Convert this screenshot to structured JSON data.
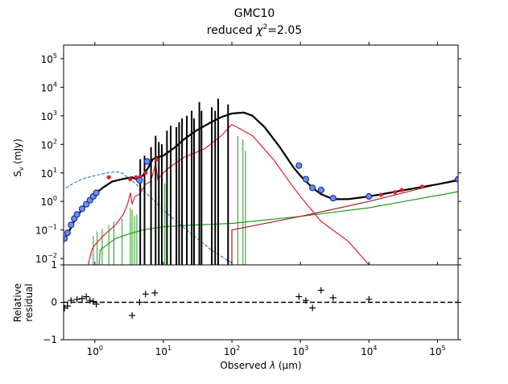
{
  "chart_data": [
    {
      "type": "line",
      "panel": "sed",
      "title_line1": "GMC10",
      "title_line2_prefix": "reduced ",
      "title_chi": "χ",
      "title_exp": "2",
      "title_line2_suffix": "=2.05",
      "ylabel_main": "S",
      "ylabel_sub": "ν",
      "ylabel_unit": " (mJy)",
      "xscale": "log",
      "yscale": "log",
      "xlim": [
        0.35,
        200000
      ],
      "ylim": [
        0.006,
        300000
      ],
      "y_ticks": [
        {
          "v": 0.01,
          "b": "10",
          "e": "−2"
        },
        {
          "v": 0.1,
          "b": "10",
          "e": "−1"
        },
        {
          "v": 1,
          "b": "10",
          "e": "0"
        },
        {
          "v": 10,
          "b": "10",
          "e": "1"
        },
        {
          "v": 100,
          "b": "10",
          "e": "2"
        },
        {
          "v": 1000,
          "b": "10",
          "e": "3"
        },
        {
          "v": 10000,
          "b": "10",
          "e": "4"
        },
        {
          "v": 100000,
          "b": "10",
          "e": "5"
        }
      ],
      "series": [
        {
          "name": "Attenuated stellar + nebular (green)",
          "color": "#1e9b1e",
          "style": "solid",
          "points": [
            [
              0.9,
              0.0
            ],
            [
              1.2,
              0.02
            ],
            [
              2,
              0.05
            ],
            [
              3,
              0.07
            ],
            [
              5,
              0.1
            ],
            [
              10,
              0.13
            ],
            [
              30,
              0.15
            ],
            [
              100,
              0.17
            ],
            [
              1000,
              0.3
            ],
            [
              10000,
              0.6
            ],
            [
              200000,
              2.2
            ]
          ],
          "lines": [
            [
              0.95,
              0.06
            ],
            [
              1.08,
              0.09
            ],
            [
              1.28,
              0.11
            ],
            [
              1.6,
              0.15
            ],
            [
              1.9,
              0.2
            ],
            [
              2.5,
              0.25
            ],
            [
              3.3,
              0.6
            ],
            [
              3.5,
              0.5
            ],
            [
              3.8,
              0.3
            ],
            [
              4.1,
              0.35
            ],
            [
              4.6,
              0.4
            ],
            [
              5.3,
              0.6
            ],
            [
              6.6,
              1.5
            ],
            [
              7.7,
              2.0
            ],
            [
              8.6,
              3.2
            ],
            [
              9.5,
              4.0
            ],
            [
              10.5,
              4.3
            ],
            [
              11.3,
              6.5
            ],
            [
              12.8,
              12
            ],
            [
              15.5,
              15
            ],
            [
              17.0,
              20
            ],
            [
              18.7,
              30
            ],
            [
              22,
              50
            ],
            [
              25.9,
              70
            ],
            [
              28,
              80
            ],
            [
              33.5,
              100
            ],
            [
              36,
              120
            ],
            [
              51,
              150
            ],
            [
              57,
              180
            ],
            [
              63,
              250
            ],
            [
              88,
              300
            ],
            [
              122,
              200
            ],
            [
              145,
              150
            ],
            [
              158,
              60
            ]
          ]
        },
        {
          "name": "Unattenuated stellar (blue dashed)",
          "color": "#2e7fd6",
          "style": "dashed",
          "points": [
            [
              0.38,
              3
            ],
            [
              0.5,
              4.5
            ],
            [
              0.7,
              6.5
            ],
            [
              1,
              8
            ],
            [
              1.5,
              10
            ],
            [
              2,
              11
            ],
            [
              2.5,
              10
            ],
            [
              3,
              7
            ],
            [
              4,
              4
            ],
            [
              5,
              2.5
            ],
            [
              7,
              1.2
            ],
            [
              10,
              0.5
            ],
            [
              20,
              0.12
            ],
            [
              50,
              0.02
            ],
            [
              100,
              0.007
            ]
          ]
        },
        {
          "name": "Dust emission (red)",
          "color": "#e01f2c",
          "style": "solid",
          "points": [
            [
              0.8,
              0.006
            ],
            [
              0.9,
              0.02
            ],
            [
              1.0,
              0.03
            ],
            [
              1.3,
              0.06
            ],
            [
              2,
              0.15
            ],
            [
              2.6,
              0.35
            ],
            [
              3.0,
              0.8
            ],
            [
              3.3,
              2
            ],
            [
              3.5,
              0.8
            ],
            [
              3.8,
              1.5
            ],
            [
              4.5,
              1.8
            ],
            [
              5.5,
              4
            ],
            [
              6.5,
              5
            ],
            [
              7.7,
              20
            ],
            [
              8.3,
              6
            ],
            [
              10,
              10
            ],
            [
              12,
              15
            ],
            [
              20,
              35
            ],
            [
              40,
              70
            ],
            [
              70,
              200
            ],
            [
              100,
              500
            ],
            [
              200,
              200
            ],
            [
              400,
              30
            ],
            [
              800,
              3
            ],
            [
              1000,
              1.5
            ],
            [
              2000,
              0.2
            ],
            [
              5000,
              0.04
            ],
            [
              10000,
              0.006
            ]
          ]
        },
        {
          "name": "Synchrotron (dark red)",
          "color": "#a61c1c",
          "style": "solid",
          "points": [
            [
              100,
              0.006
            ],
            [
              100,
              0.1
            ],
            [
              1000,
              0.3
            ],
            [
              10000,
              1
            ],
            [
              200000,
              6
            ]
          ]
        },
        {
          "name": "Total model (black)",
          "color": "#000000",
          "style": "solid",
          "points": [
            [
              0.35,
              0.04
            ],
            [
              0.4,
              0.07
            ],
            [
              0.5,
              0.2
            ],
            [
              0.6,
              0.4
            ],
            [
              0.8,
              1.0
            ],
            [
              1,
              1.8
            ],
            [
              1.3,
              3
            ],
            [
              1.8,
              5
            ],
            [
              2.5,
              6
            ],
            [
              3.5,
              7
            ],
            [
              4,
              6
            ],
            [
              5,
              8
            ],
            [
              6,
              15
            ],
            [
              7,
              30
            ],
            [
              8,
              35
            ],
            [
              10,
              40
            ],
            [
              15,
              80
            ],
            [
              20,
              150
            ],
            [
              30,
              300
            ],
            [
              50,
              600
            ],
            [
              70,
              900
            ],
            [
              100,
              1200
            ],
            [
              150,
              1300
            ],
            [
              200,
              1000
            ],
            [
              300,
              400
            ],
            [
              500,
              80
            ],
            [
              800,
              15
            ],
            [
              1000,
              8
            ],
            [
              1500,
              3
            ],
            [
              2000,
              1.8
            ],
            [
              3000,
              1.2
            ],
            [
              5000,
              1.2
            ],
            [
              10000,
              1.5
            ],
            [
              20000,
              2
            ],
            [
              50000,
              3
            ],
            [
              100000,
              4
            ],
            [
              200000,
              5.5
            ]
          ],
          "lines": [
            [
              4.6,
              30
            ],
            [
              5.3,
              40
            ],
            [
              6.6,
              80
            ],
            [
              7.7,
              200
            ],
            [
              8.6,
              120
            ],
            [
              9.5,
              100
            ],
            [
              11.3,
              300
            ],
            [
              12.8,
              450
            ],
            [
              15.5,
              400
            ],
            [
              17.0,
              600
            ],
            [
              18.7,
              800
            ],
            [
              22,
              1000
            ],
            [
              25.9,
              1500
            ],
            [
              28,
              800
            ],
            [
              33.5,
              3000
            ],
            [
              36,
              1500
            ],
            [
              51,
              2000
            ],
            [
              57,
              1500
            ],
            [
              63,
              4000
            ],
            [
              88,
              2500
            ]
          ]
        }
      ],
      "observed": [
        [
          0.36,
          0.05
        ],
        [
          0.4,
          0.08
        ],
        [
          0.45,
          0.15
        ],
        [
          0.5,
          0.25
        ],
        [
          0.55,
          0.35
        ],
        [
          0.65,
          0.55
        ],
        [
          0.75,
          0.8
        ],
        [
          0.85,
          1.1
        ],
        [
          0.95,
          1.5
        ],
        [
          1.05,
          2.0
        ],
        [
          4.5,
          5.5
        ],
        [
          5.8,
          25
        ],
        [
          950,
          18
        ],
        [
          1200,
          6
        ],
        [
          1500,
          3
        ],
        [
          2000,
          2.5
        ],
        [
          3000,
          1.3
        ],
        [
          10000,
          1.5
        ],
        [
          200000,
          6
        ]
      ],
      "model_points": [
        [
          1.6,
          7
        ],
        [
          3.3,
          6
        ],
        [
          4.0,
          7
        ],
        [
          4.6,
          7.5
        ],
        [
          5.5,
          10
        ],
        [
          8,
          30
        ],
        [
          1200,
          6
        ],
        [
          2100,
          2.5
        ],
        [
          15000,
          1.7
        ],
        [
          24000,
          2.1
        ],
        [
          30000,
          2.5
        ],
        [
          60000,
          3.3
        ]
      ]
    },
    {
      "type": "scatter",
      "panel": "residual",
      "ylabel_line1": "Relative",
      "ylabel_line2": "residual",
      "xlabel_prefix": "Observed ",
      "xlabel_var": "λ",
      "xlabel_suffix": " (μm)",
      "xscale": "log",
      "xlim": [
        0.35,
        200000
      ],
      "ylim": [
        -1,
        1
      ],
      "y_ticks": [
        {
          "v": -1,
          "label": "−1"
        },
        {
          "v": 0,
          "label": "0"
        },
        {
          "v": 1,
          "label": "1"
        }
      ],
      "x_ticks": [
        {
          "v": 1,
          "b": "10",
          "e": "0"
        },
        {
          "v": 10,
          "b": "10",
          "e": "1"
        },
        {
          "v": 100,
          "b": "10",
          "e": "2"
        },
        {
          "v": 1000,
          "b": "10",
          "e": "3"
        },
        {
          "v": 10000,
          "b": "10",
          "e": "4"
        },
        {
          "v": 100000,
          "b": "10",
          "e": "5"
        }
      ],
      "zero_line": 0,
      "points": [
        [
          0.36,
          -0.15
        ],
        [
          0.4,
          -0.1
        ],
        [
          0.45,
          0.05
        ],
        [
          0.55,
          0.08
        ],
        [
          0.65,
          0.1
        ],
        [
          0.75,
          0.15
        ],
        [
          0.85,
          0.05
        ],
        [
          0.95,
          0.02
        ],
        [
          1.05,
          -0.05
        ],
        [
          3.5,
          -0.35
        ],
        [
          4.5,
          0.0
        ],
        [
          5.5,
          0.22
        ],
        [
          7.5,
          0.25
        ],
        [
          950,
          0.15
        ],
        [
          1200,
          0.05
        ],
        [
          1500,
          -0.15
        ],
        [
          2000,
          0.32
        ],
        [
          3000,
          0.12
        ],
        [
          10000,
          0.08
        ],
        [
          200000,
          0.0
        ]
      ]
    }
  ]
}
